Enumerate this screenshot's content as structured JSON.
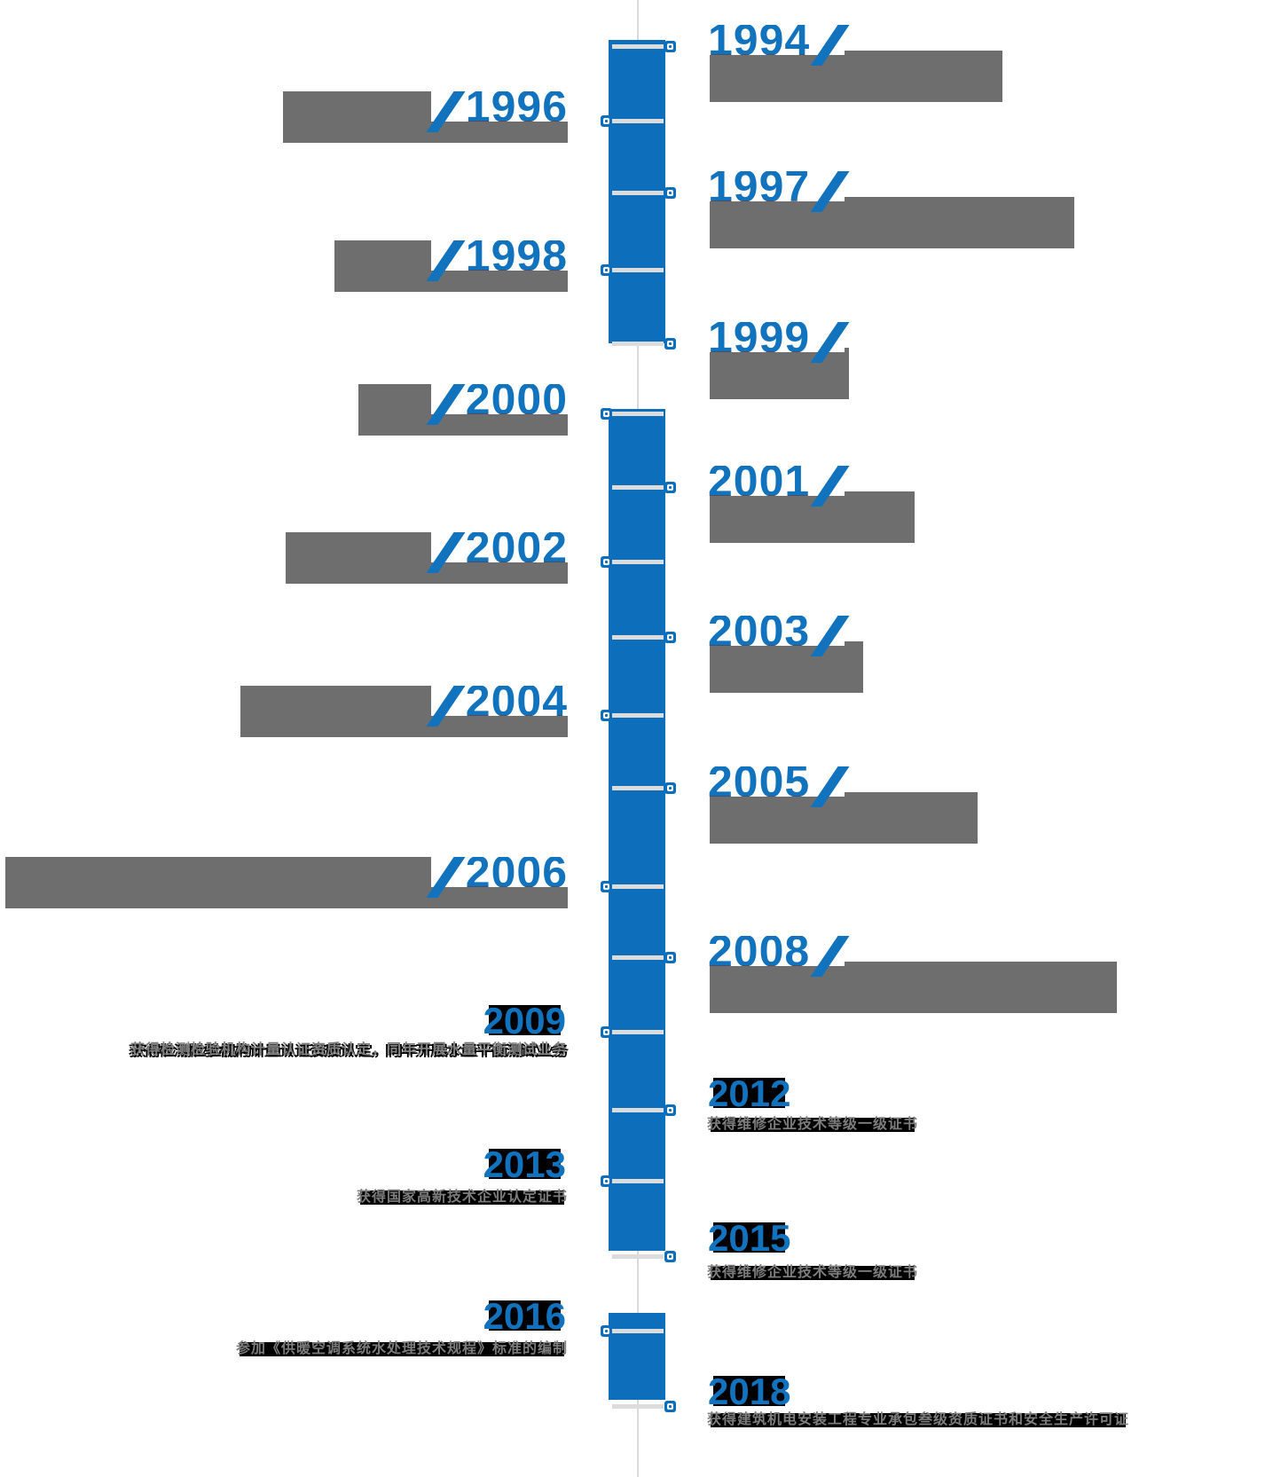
{
  "page": {
    "background": "#ffffff",
    "description": "corporate history vertical timeline"
  },
  "colors": {
    "accent_blue": "#1173bd",
    "bar_blue": "#0d6fbc",
    "box_gray": "#6e6e6e",
    "text_gray": "#7d7d7d",
    "highlight_black": "#000000",
    "axis_gray": "#d9d9d9",
    "year_shaded_tone": "#44506a"
  },
  "timeline": {
    "items": [
      {
        "year": "1994",
        "desc": "",
        "side": "right",
        "state": "covered"
      },
      {
        "year": "1996",
        "desc": "",
        "side": "left",
        "state": "covered"
      },
      {
        "year": "1997",
        "desc": "",
        "side": "right",
        "state": "covered"
      },
      {
        "year": "1998",
        "desc": "",
        "side": "left",
        "state": "covered"
      },
      {
        "year": "1999",
        "desc": "",
        "side": "right",
        "state": "covered"
      },
      {
        "year": "2000",
        "desc": "",
        "side": "left",
        "state": "covered"
      },
      {
        "year": "2001",
        "desc": "",
        "side": "right",
        "state": "covered"
      },
      {
        "year": "2002",
        "desc": "",
        "side": "left",
        "state": "covered"
      },
      {
        "year": "2003",
        "desc": "",
        "side": "right",
        "state": "covered"
      },
      {
        "year": "2004",
        "desc": "",
        "side": "left",
        "state": "covered"
      },
      {
        "year": "2005",
        "desc": "",
        "side": "right",
        "state": "covered"
      },
      {
        "year": "2006",
        "desc": "",
        "side": "left",
        "state": "covered"
      },
      {
        "year": "2008",
        "desc": "",
        "side": "right",
        "state": "covered"
      },
      {
        "year": "2009",
        "desc": "获得检测检验机构计量认证资质认定，同年开展水量平衡测试业务",
        "side": "left",
        "state": "revealed"
      },
      {
        "year": "2012",
        "desc": "获得维修企业技术等级一级证书",
        "side": "right",
        "state": "revealed"
      },
      {
        "year": "2013",
        "desc": "获得国家高新技术企业认定证书",
        "side": "left",
        "state": "revealed"
      },
      {
        "year": "2015",
        "desc": "获得维修企业技术等级一级证书",
        "side": "right",
        "state": "revealed"
      },
      {
        "year": "2016",
        "desc": "参加《供暖空调系统水处理技术规程》标准的编制",
        "side": "left",
        "state": "revealed"
      },
      {
        "year": "2018",
        "desc": "获得建筑机电安装工程专业承包叁级资质证书和安全生产许可证",
        "side": "right",
        "state": "revealed"
      }
    ]
  }
}
